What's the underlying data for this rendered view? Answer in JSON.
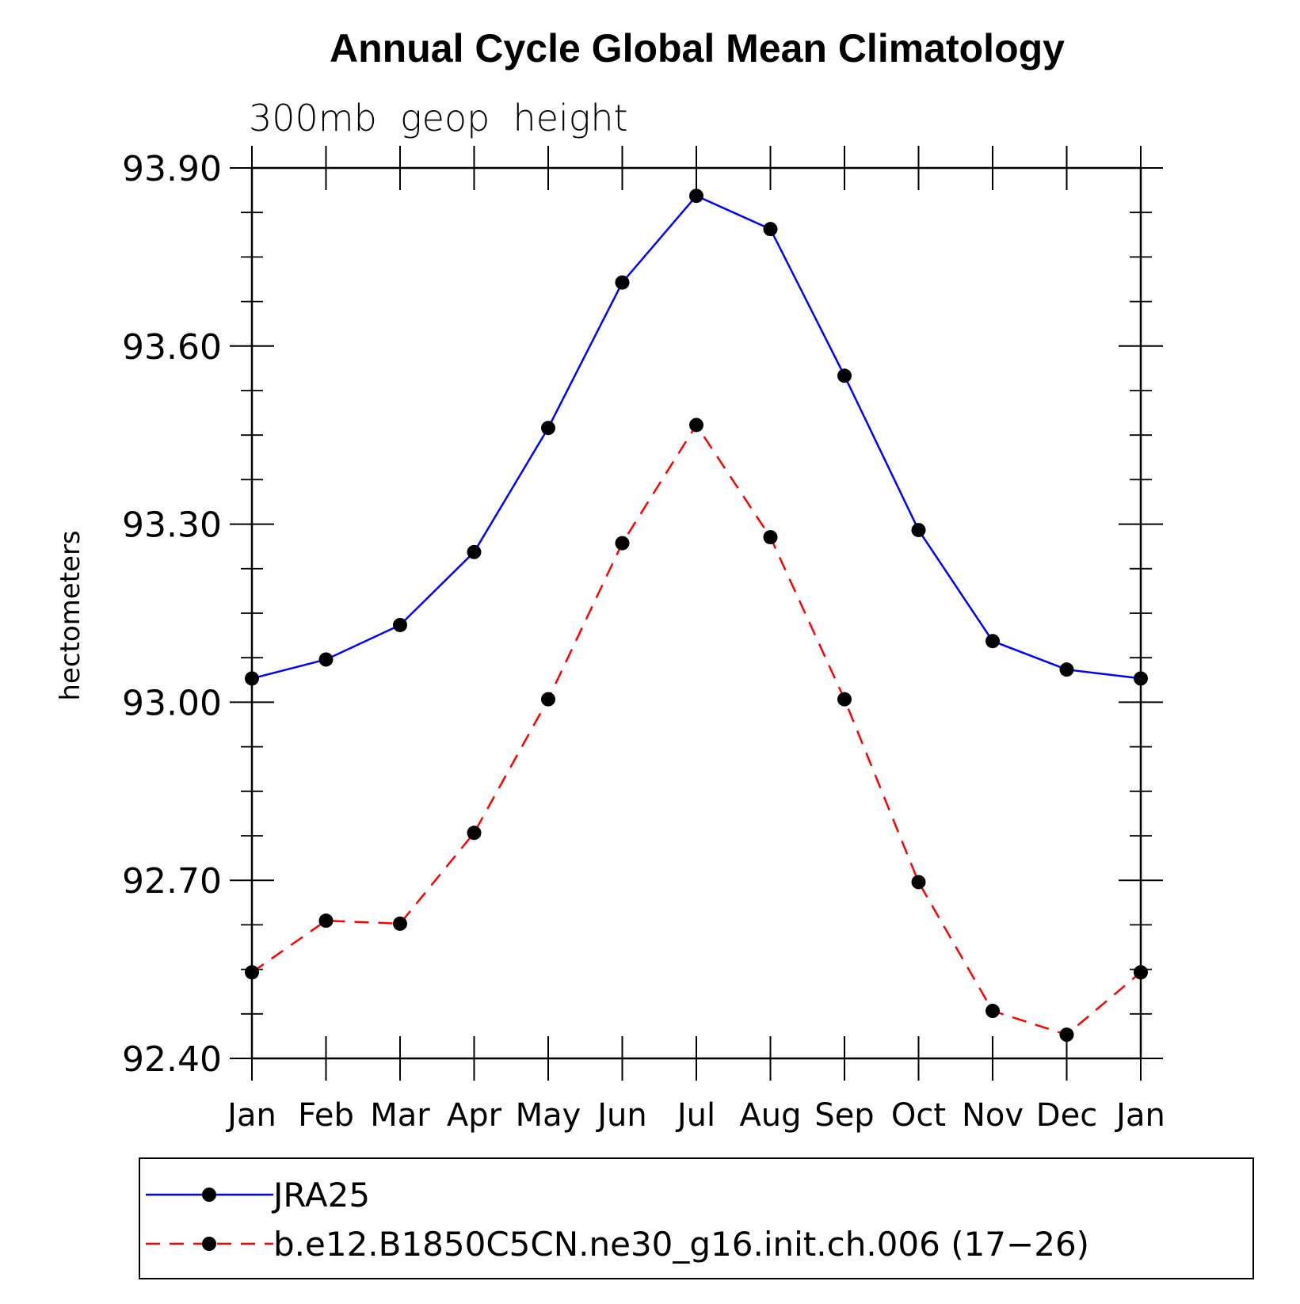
{
  "chart_data": {
    "type": "line",
    "title": "Annual Cycle Global Mean Climatology",
    "subtitle": "300mb  geop  height",
    "xlabel": "",
    "ylabel": "hectometers",
    "categories": [
      "Jan",
      "Feb",
      "Mar",
      "Apr",
      "May",
      "Jun",
      "Jul",
      "Aug",
      "Sep",
      "Oct",
      "Nov",
      "Dec",
      "Jan"
    ],
    "ylim": [
      92.4,
      93.9
    ],
    "yticks": [
      "93.90",
      "93.60",
      "93.30",
      "93.00",
      "92.70",
      "92.40"
    ],
    "ytick_values": [
      93.9,
      93.6,
      93.3,
      93.0,
      92.7,
      92.4
    ],
    "series": [
      {
        "name": "JRA25",
        "color": "#0000ff",
        "dash": "solid",
        "values": [
          93.04,
          93.072,
          93.13,
          93.253,
          93.462,
          93.707,
          93.853,
          93.797,
          93.55,
          93.29,
          93.103,
          93.055,
          93.04
        ]
      },
      {
        "name": "b.e12.B1850C5CN.ne30_g16.init.ch.006 (17−26)",
        "color": "#ff0000",
        "dash": "dashed",
        "values": [
          92.545,
          92.632,
          92.627,
          92.78,
          93.005,
          93.268,
          93.467,
          93.278,
          93.005,
          92.697,
          92.48,
          92.44,
          92.545
        ]
      }
    ],
    "legend_position": "bottom"
  }
}
